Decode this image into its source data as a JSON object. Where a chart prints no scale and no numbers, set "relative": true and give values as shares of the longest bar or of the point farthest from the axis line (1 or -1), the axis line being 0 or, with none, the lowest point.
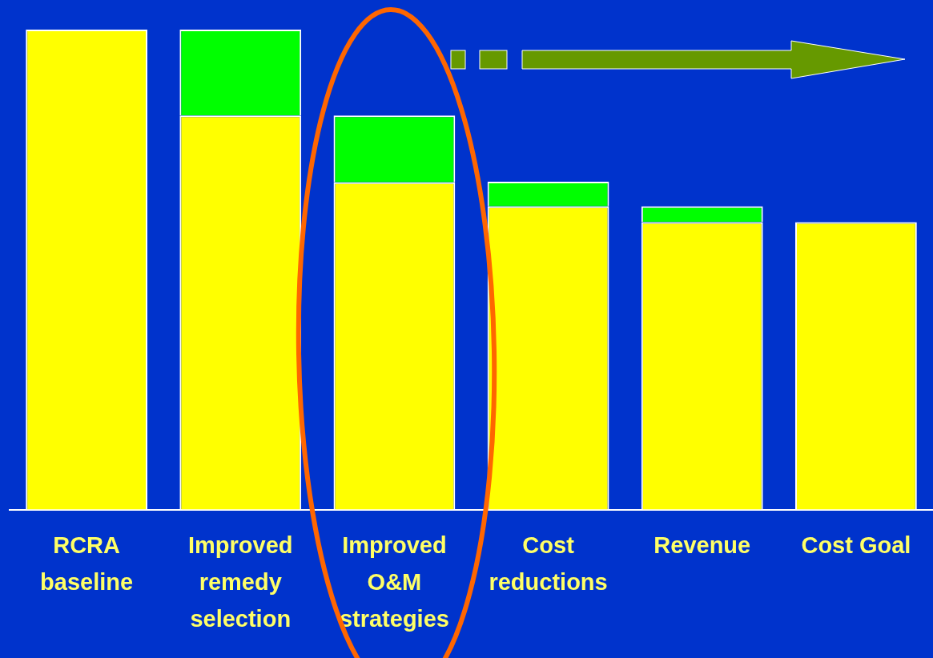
{
  "chart_data": {
    "type": "bar",
    "stacked": true,
    "relative": true,
    "legend": false,
    "grid": false,
    "categories": [
      "RCRA baseline",
      "Improved remedy selection",
      "Improved O&M strategies",
      "Cost reductions",
      "Revenue",
      "Cost Goal"
    ],
    "series": [
      {
        "color": "#ffff00",
        "values": [
          1,
          0.821,
          0.682,
          0.632,
          0.599,
          0.599
        ]
      },
      {
        "color": "#00ff00",
        "values": [
          null,
          0.179,
          0.139,
          0.051,
          0.033,
          null
        ]
      }
    ]
  }
}
